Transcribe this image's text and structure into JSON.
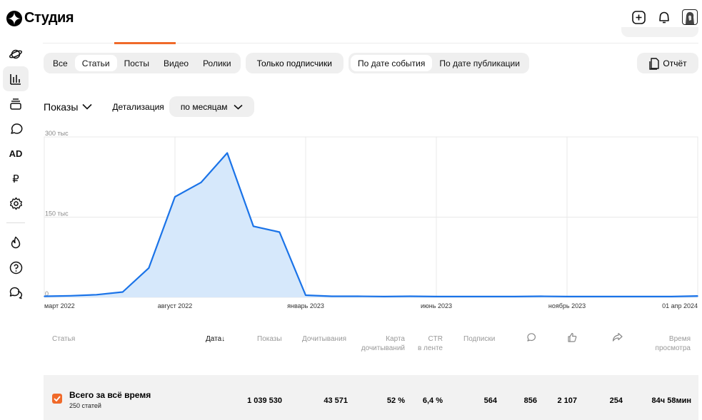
{
  "app": {
    "title": "Студия"
  },
  "filters": {
    "content_types": [
      "Все",
      "Статьи",
      "Посты",
      "Видео",
      "Ролики"
    ],
    "selected_content_type": "Статьи",
    "subscribers_only": "Только подписчики",
    "date_modes": [
      "По дате события",
      "По дате публикации"
    ],
    "selected_date_mode": "По дате события",
    "report_label": "Отчёт"
  },
  "metric": {
    "selected": "Показы",
    "detail_label": "Детализация",
    "detail_value": "по месяцам"
  },
  "chart_data": {
    "type": "area",
    "x": [
      "2022-03",
      "2022-04",
      "2022-05",
      "2022-06",
      "2022-07",
      "2022-08",
      "2022-09",
      "2022-10",
      "2022-11",
      "2022-12",
      "2023-01",
      "2023-02",
      "2023-03",
      "2023-04",
      "2023-05",
      "2023-06",
      "2023-07",
      "2023-08",
      "2023-09",
      "2023-10",
      "2023-11",
      "2023-12",
      "2024-01",
      "2024-02",
      "2024-03",
      "2024-04"
    ],
    "values": [
      2000,
      3000,
      5000,
      10000,
      55000,
      188000,
      215000,
      270000,
      133000,
      122000,
      4000,
      2000,
      2000,
      1500,
      2000,
      1500,
      1500,
      1500,
      1500,
      2000,
      1500,
      1500,
      1500,
      1500,
      1500,
      2500
    ],
    "x_tick_labels": [
      "март 2022",
      "август 2022",
      "январь 2023",
      "июнь 2023",
      "ноябрь 2023",
      "01 апр 2024"
    ],
    "y_tick_labels": [
      "0",
      "150 тыс",
      "300 тыс"
    ],
    "ylim": [
      0,
      300000
    ],
    "grid": true,
    "colors": {
      "line": "#1a73e8",
      "fill": "#d6e8fb",
      "grid": "#e8e8e8"
    }
  },
  "table": {
    "headers": {
      "article": "Статья",
      "date": "Дата",
      "date_sort": "↓",
      "impressions": "Показы",
      "reads": "Дочитывания",
      "card_reads": [
        "Карта",
        "дочитываний"
      ],
      "ctr": [
        "CTR",
        "в ленте"
      ],
      "subs": "Подписки",
      "watch_time": [
        "Время",
        "просмотра"
      ]
    },
    "header_icons": [
      "comment-icon",
      "like-icon",
      "share-icon"
    ],
    "total": {
      "title": "Всего за всё время",
      "subtitle": "250 статей",
      "impressions": "1 039 530",
      "reads": "43 571",
      "card_reads": "52 %",
      "ctr": "6,4 %",
      "subs": "564",
      "comments": "856",
      "likes": "2 107",
      "shares": "254",
      "watch_time": "84ч 58мин"
    }
  },
  "colors": {
    "accent": "#f06a2a",
    "line": "#1a73e8",
    "pill_bg": "#efefef"
  }
}
